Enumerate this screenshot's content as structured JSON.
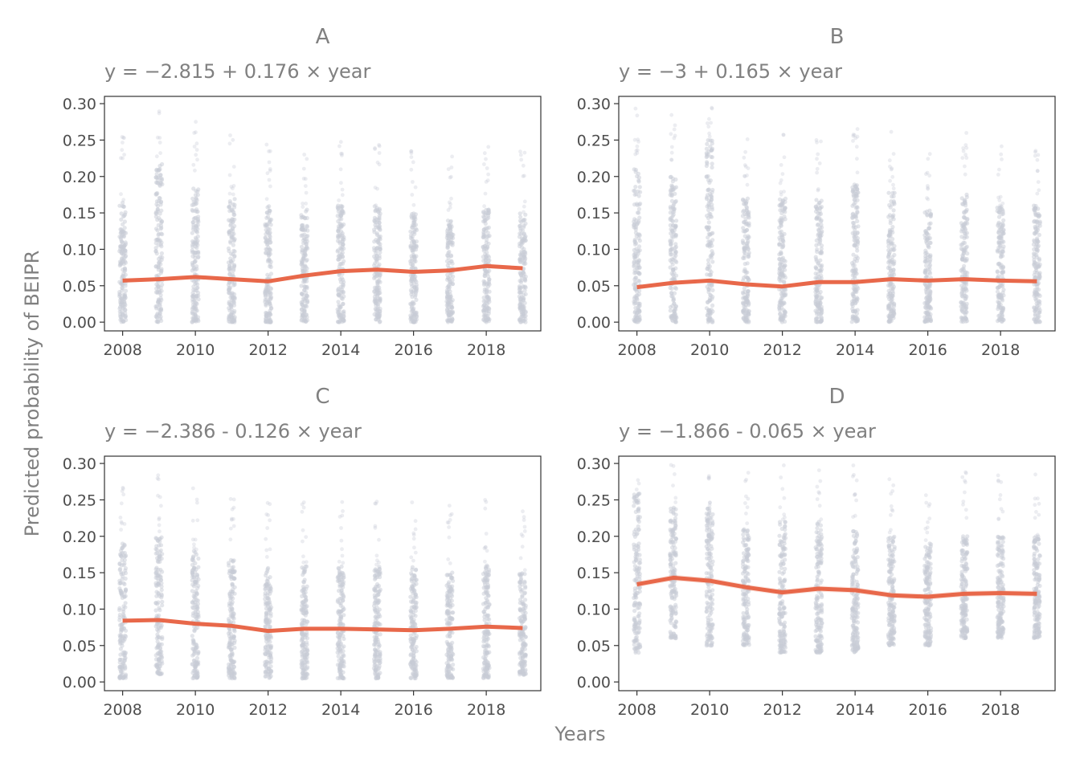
{
  "figure": {
    "xlabel": "Years",
    "ylabel": "Predicted probability of BEIPR"
  },
  "colors": {
    "points": "#C8CCD6",
    "trend": "#E8684A",
    "frame": "#333333",
    "text": "#808080"
  },
  "chart_data": [
    {
      "type": "line",
      "panel": "A",
      "title": "A",
      "subtitle": "y = −2.815 + 0.176 × year",
      "x": [
        2008,
        2009,
        2010,
        2011,
        2012,
        2013,
        2014,
        2015,
        2016,
        2017,
        2018,
        2019
      ],
      "series": [
        {
          "values": [
            0.057,
            0.059,
            0.062,
            0.059,
            0.056,
            0.064,
            0.07,
            0.072,
            0.069,
            0.071,
            0.077,
            0.074
          ]
        }
      ],
      "points_range": [
        [
          0,
          0.165
        ],
        [
          0,
          0.22
        ],
        [
          0,
          0.19
        ],
        [
          0,
          0.17
        ],
        [
          0,
          0.16
        ],
        [
          0,
          0.155
        ],
        [
          0,
          0.16
        ],
        [
          0,
          0.16
        ],
        [
          0,
          0.15
        ],
        [
          0,
          0.14
        ],
        [
          0,
          0.155
        ],
        [
          0,
          0.15
        ]
      ],
      "xticks": [
        "2008",
        "2010",
        "2012",
        "2014",
        "2016",
        "2018"
      ],
      "yticks": [
        "0.00",
        "0.05",
        "0.10",
        "0.15",
        "0.20",
        "0.25",
        "0.30"
      ],
      "xlim": [
        2007.5,
        2019.5
      ],
      "ylim": [
        -0.012,
        0.31
      ]
    },
    {
      "type": "line",
      "panel": "B",
      "title": "B",
      "subtitle": "y = −3 + 0.165 × year",
      "x": [
        2008,
        2009,
        2010,
        2011,
        2012,
        2013,
        2014,
        2015,
        2016,
        2017,
        2018,
        2019
      ],
      "series": [
        {
          "values": [
            0.048,
            0.054,
            0.057,
            0.052,
            0.049,
            0.055,
            0.055,
            0.059,
            0.057,
            0.059,
            0.057,
            0.056
          ]
        }
      ],
      "points_range": [
        [
          0,
          0.21
        ],
        [
          0,
          0.2
        ],
        [
          0,
          0.25
        ],
        [
          0,
          0.17
        ],
        [
          0,
          0.17
        ],
        [
          0,
          0.17
        ],
        [
          0,
          0.19
        ],
        [
          0,
          0.18
        ],
        [
          0,
          0.155
        ],
        [
          0,
          0.175
        ],
        [
          0,
          0.16
        ],
        [
          0,
          0.16
        ]
      ],
      "xticks": [
        "2008",
        "2010",
        "2012",
        "2014",
        "2016",
        "2018"
      ],
      "yticks": [
        "0.00",
        "0.05",
        "0.10",
        "0.15",
        "0.20",
        "0.25",
        "0.30"
      ],
      "xlim": [
        2007.5,
        2019.5
      ],
      "ylim": [
        -0.012,
        0.31
      ]
    },
    {
      "type": "line",
      "panel": "C",
      "title": "C",
      "subtitle": "y = −2.386 - 0.126 × year",
      "x": [
        2008,
        2009,
        2010,
        2011,
        2012,
        2013,
        2014,
        2015,
        2016,
        2017,
        2018,
        2019
      ],
      "series": [
        {
          "values": [
            0.084,
            0.085,
            0.08,
            0.077,
            0.07,
            0.073,
            0.073,
            0.072,
            0.071,
            0.073,
            0.076,
            0.074
          ]
        }
      ],
      "points_range": [
        [
          0.005,
          0.19
        ],
        [
          0.01,
          0.2
        ],
        [
          0.005,
          0.18
        ],
        [
          0.005,
          0.17
        ],
        [
          0.005,
          0.16
        ],
        [
          0.005,
          0.16
        ],
        [
          0.005,
          0.16
        ],
        [
          0.005,
          0.16
        ],
        [
          0.005,
          0.16
        ],
        [
          0.005,
          0.155
        ],
        [
          0.005,
          0.16
        ],
        [
          0.01,
          0.15
        ]
      ],
      "xticks": [
        "2008",
        "2010",
        "2012",
        "2014",
        "2016",
        "2018"
      ],
      "yticks": [
        "0.00",
        "0.05",
        "0.10",
        "0.15",
        "0.20",
        "0.25",
        "0.30"
      ],
      "xlim": [
        2007.5,
        2019.5
      ],
      "ylim": [
        -0.012,
        0.31
      ]
    },
    {
      "type": "line",
      "panel": "D",
      "title": "D",
      "subtitle": "y = −1.866 - 0.065 × year",
      "x": [
        2008,
        2009,
        2010,
        2011,
        2012,
        2013,
        2014,
        2015,
        2016,
        2017,
        2018,
        2019
      ],
      "series": [
        {
          "values": [
            0.134,
            0.143,
            0.139,
            0.13,
            0.123,
            0.128,
            0.126,
            0.119,
            0.117,
            0.121,
            0.122,
            0.121
          ]
        }
      ],
      "band": 0.004,
      "points_range": [
        [
          0.04,
          0.26
        ],
        [
          0.06,
          0.24
        ],
        [
          0.05,
          0.24
        ],
        [
          0.05,
          0.21
        ],
        [
          0.04,
          0.22
        ],
        [
          0.04,
          0.22
        ],
        [
          0.04,
          0.21
        ],
        [
          0.05,
          0.2
        ],
        [
          0.05,
          0.19
        ],
        [
          0.06,
          0.2
        ],
        [
          0.06,
          0.2
        ],
        [
          0.06,
          0.2
        ]
      ],
      "xticks": [
        "2008",
        "2010",
        "2012",
        "2014",
        "2016",
        "2018"
      ],
      "yticks": [
        "0.00",
        "0.05",
        "0.10",
        "0.15",
        "0.20",
        "0.25",
        "0.30"
      ],
      "xlim": [
        2007.5,
        2019.5
      ],
      "ylim": [
        -0.012,
        0.31
      ]
    }
  ]
}
